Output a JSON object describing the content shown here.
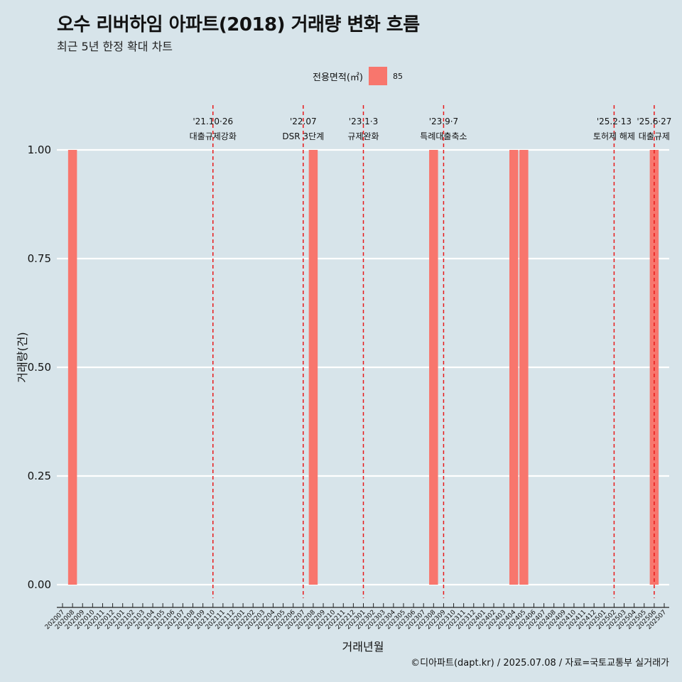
{
  "title": "오수 리버하임 아파트(2018) 거래량 변화 흐름",
  "subtitle": "최근 5년 한정 확대 차트",
  "caption": "©디아파트(dapt.kr) / 2025.07.08 / 자료=국토교통부 실거래가",
  "legend": {
    "title": "전용면적(㎡)",
    "label": "85"
  },
  "colors": {
    "bar": "#f8766d",
    "vline": "#e8191a",
    "background": "#d7e4ea",
    "grid": "#ffffff"
  },
  "chart_data": {
    "type": "bar",
    "xlabel": "거래년월",
    "ylabel": "거래량(건)",
    "ylim": [
      0,
      1
    ],
    "yticks": [
      "0.00",
      "0.25",
      "0.50",
      "0.75",
      "1.00"
    ],
    "grid": true,
    "legend_position": "top",
    "categories": [
      "202007",
      "202008",
      "202009",
      "202010",
      "202011",
      "202012",
      "202101",
      "202102",
      "202103",
      "202104",
      "202105",
      "202106",
      "202107",
      "202108",
      "202109",
      "202110",
      "202111",
      "202112",
      "202201",
      "202202",
      "202203",
      "202204",
      "202205",
      "202206",
      "202207",
      "202208",
      "202209",
      "202210",
      "202211",
      "202212",
      "202301",
      "202302",
      "202303",
      "202304",
      "202305",
      "202306",
      "202307",
      "202308",
      "202309",
      "202310",
      "202311",
      "202312",
      "202401",
      "202402",
      "202403",
      "202404",
      "202405",
      "202406",
      "202407",
      "202408",
      "202409",
      "202410",
      "202411",
      "202412",
      "202501",
      "202502",
      "202503",
      "202504",
      "202505",
      "202506",
      "202507"
    ],
    "series": [
      {
        "name": "85",
        "values": [
          0,
          1,
          0,
          0,
          0,
          0,
          0,
          0,
          0,
          0,
          0,
          0,
          0,
          0,
          0,
          0,
          0,
          0,
          0,
          0,
          0,
          0,
          0,
          0,
          0,
          1,
          0,
          0,
          0,
          0,
          0,
          0,
          0,
          0,
          0,
          0,
          0,
          1,
          0,
          0,
          0,
          0,
          0,
          0,
          0,
          1,
          1,
          0,
          0,
          0,
          0,
          0,
          0,
          0,
          0,
          0,
          0,
          0,
          0,
          1,
          0
        ]
      }
    ],
    "annotations": [
      {
        "month": "202110",
        "date": "'21.10·26",
        "text": "대출규제강화"
      },
      {
        "month": "202207",
        "date": "'22.07",
        "text": "DSR 3단계"
      },
      {
        "month": "202301",
        "date": "'23.1·3",
        "text": "규제완화"
      },
      {
        "month": "202309",
        "date": "'23.9·7",
        "text": "특례대출축소"
      },
      {
        "month": "202502",
        "date": "'25.2·13",
        "text": "토허제 해제"
      },
      {
        "month": "202506",
        "date": "'25.6·27",
        "text": "대출규제"
      }
    ]
  }
}
